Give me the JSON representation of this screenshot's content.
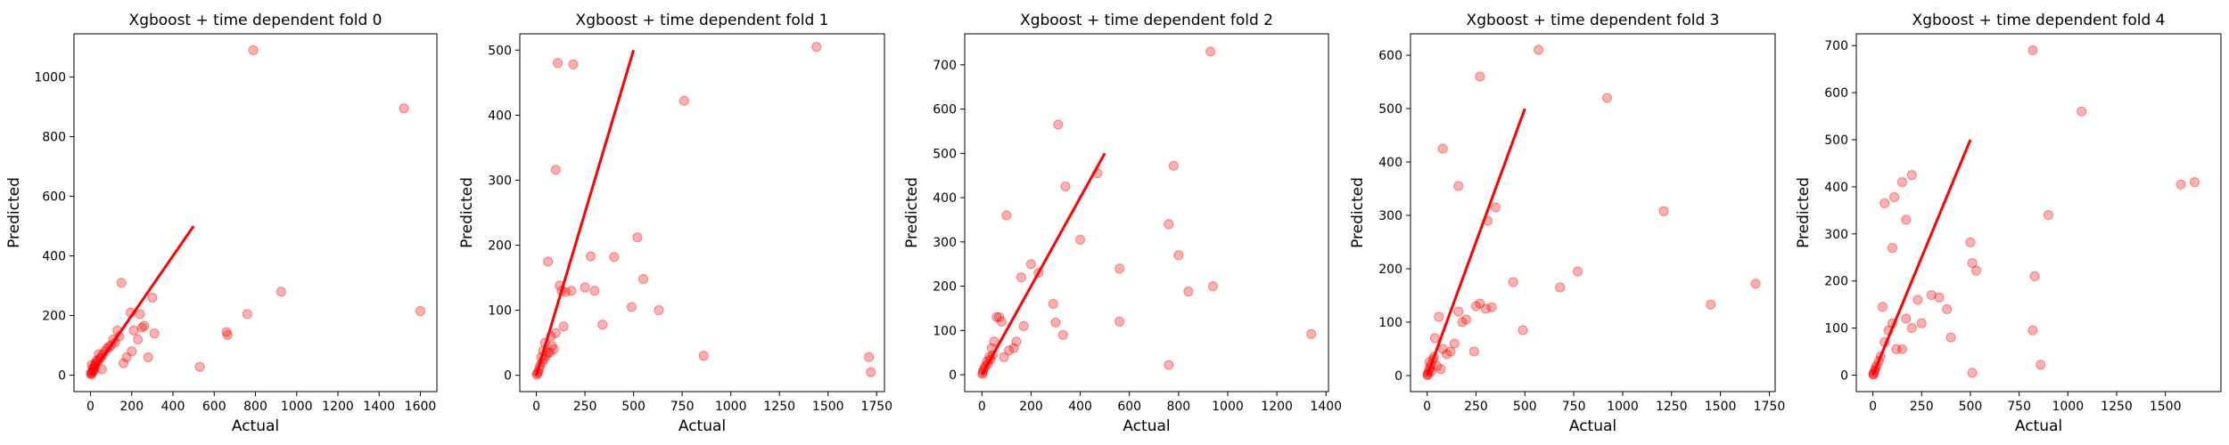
{
  "chart_data": [
    {
      "type": "scatter",
      "title": "Xgboost + time dependent fold 0",
      "xlabel": "Actual",
      "ylabel": "Predicted",
      "xlim": [
        -80,
        1680
      ],
      "ylim": [
        -55,
        1145
      ],
      "xticks": [
        0,
        200,
        400,
        600,
        800,
        1000,
        1200,
        1400,
        1600
      ],
      "yticks": [
        0,
        200,
        400,
        600,
        800,
        1000
      ],
      "reference_line": [
        [
          0,
          0
        ],
        [
          500,
          500
        ]
      ],
      "x": [
        790,
        1520,
        1600,
        925,
        760,
        660,
        665,
        530,
        300,
        150,
        195,
        240,
        260,
        210,
        175,
        310,
        100,
        140,
        80,
        60,
        50,
        30,
        25,
        20,
        15,
        10,
        8,
        5,
        3,
        2,
        12,
        22,
        35,
        45,
        70,
        90,
        120,
        160,
        200,
        230,
        250,
        280,
        130,
        110,
        55,
        40,
        18,
        6
      ],
      "y": [
        1090,
        895,
        215,
        280,
        205,
        145,
        135,
        28,
        260,
        310,
        210,
        205,
        165,
        150,
        60,
        140,
        100,
        130,
        90,
        70,
        60,
        50,
        40,
        30,
        20,
        15,
        10,
        5,
        2,
        8,
        25,
        35,
        45,
        55,
        80,
        95,
        110,
        40,
        80,
        120,
        160,
        60,
        150,
        120,
        20,
        70,
        15,
        35
      ]
    },
    {
      "type": "scatter",
      "title": "Xgboost + time dependent fold 1",
      "xlabel": "Actual",
      "ylabel": "Predicted",
      "xlim": [
        -85,
        1790
      ],
      "ylim": [
        -25,
        525
      ],
      "xticks": [
        0,
        250,
        500,
        750,
        1000,
        1250,
        1500,
        1750
      ],
      "yticks": [
        0,
        100,
        200,
        300,
        400,
        500
      ],
      "reference_line": [
        [
          0,
          0
        ],
        [
          500,
          500
        ]
      ],
      "x": [
        1440,
        1710,
        1720,
        110,
        190,
        760,
        860,
        100,
        520,
        550,
        630,
        490,
        400,
        280,
        250,
        300,
        340,
        60,
        120,
        130,
        150,
        90,
        80,
        70,
        50,
        40,
        30,
        20,
        15,
        10,
        5,
        2,
        25,
        35,
        45,
        60,
        75,
        100,
        140,
        180
      ],
      "y": [
        505,
        28,
        5,
        480,
        478,
        422,
        30,
        316,
        212,
        148,
        100,
        105,
        182,
        183,
        135,
        130,
        78,
        175,
        138,
        130,
        128,
        40,
        45,
        35,
        30,
        25,
        20,
        15,
        10,
        5,
        3,
        1,
        28,
        38,
        50,
        35,
        60,
        65,
        75,
        130
      ]
    },
    {
      "type": "scatter",
      "title": "Xgboost + time dependent fold 2",
      "xlabel": "Actual",
      "ylabel": "Predicted",
      "xlim": [
        -70,
        1410
      ],
      "ylim": [
        -38,
        770
      ],
      "xticks": [
        0,
        200,
        400,
        600,
        800,
        1000,
        1200,
        1400
      ],
      "yticks": [
        0,
        100,
        200,
        300,
        400,
        500,
        600,
        700
      ],
      "reference_line": [
        [
          0,
          0
        ],
        [
          500,
          500
        ]
      ],
      "x": [
        930,
        310,
        780,
        760,
        800,
        560,
        340,
        470,
        400,
        290,
        230,
        940,
        840,
        1340,
        760,
        560,
        300,
        330,
        200,
        170,
        130,
        100,
        80,
        60,
        50,
        40,
        30,
        20,
        15,
        10,
        5,
        3,
        2,
        25,
        35,
        45,
        70,
        90,
        110,
        140,
        160
      ],
      "y": [
        730,
        565,
        472,
        340,
        270,
        240,
        425,
        455,
        305,
        160,
        230,
        200,
        188,
        92,
        22,
        120,
        118,
        90,
        250,
        110,
        60,
        360,
        120,
        130,
        75,
        60,
        40,
        30,
        20,
        15,
        10,
        5,
        2,
        25,
        35,
        45,
        130,
        40,
        55,
        75,
        220
      ]
    },
    {
      "type": "scatter",
      "title": "Xgboost + time dependent fold 3",
      "xlabel": "Actual",
      "ylabel": "Predicted",
      "xlim": [
        -85,
        1780
      ],
      "ylim": [
        -30,
        640
      ],
      "xticks": [
        0,
        250,
        500,
        750,
        1000,
        1250,
        1500,
        1750
      ],
      "yticks": [
        0,
        100,
        200,
        300,
        400,
        500,
        600
      ],
      "reference_line": [
        [
          0,
          0
        ],
        [
          500,
          500
        ]
      ],
      "x": [
        570,
        270,
        920,
        80,
        160,
        1210,
        350,
        310,
        1680,
        770,
        440,
        680,
        1450,
        490,
        330,
        300,
        270,
        250,
        240,
        200,
        180,
        160,
        140,
        120,
        100,
        80,
        60,
        40,
        30,
        20,
        15,
        10,
        5,
        3,
        2,
        12,
        22,
        35,
        50,
        70
      ],
      "y": [
        610,
        560,
        520,
        425,
        355,
        308,
        315,
        290,
        172,
        195,
        175,
        165,
        133,
        85,
        128,
        125,
        135,
        130,
        45,
        105,
        100,
        120,
        60,
        45,
        40,
        50,
        110,
        70,
        30,
        20,
        15,
        10,
        5,
        2,
        1,
        25,
        8,
        35,
        18,
        12
      ]
    },
    {
      "type": "scatter",
      "title": "Xgboost + time dependent fold 4",
      "xlabel": "Actual",
      "ylabel": "Predicted",
      "xlim": [
        -85,
        1785
      ],
      "ylim": [
        -35,
        725
      ],
      "xticks": [
        0,
        250,
        500,
        750,
        1000,
        1250,
        1500
      ],
      "yticks": [
        0,
        100,
        200,
        300,
        400,
        500,
        600,
        700
      ],
      "reference_line": [
        [
          0,
          0
        ],
        [
          500,
          500
        ]
      ],
      "x": [
        820,
        1070,
        1580,
        1650,
        200,
        150,
        60,
        110,
        100,
        170,
        900,
        500,
        530,
        830,
        510,
        820,
        860,
        510,
        400,
        380,
        340,
        300,
        250,
        230,
        200,
        170,
        150,
        120,
        100,
        80,
        60,
        40,
        30,
        20,
        15,
        10,
        5,
        3,
        2,
        50
      ],
      "y": [
        690,
        560,
        405,
        410,
        425,
        410,
        365,
        378,
        270,
        330,
        340,
        282,
        222,
        210,
        238,
        95,
        22,
        5,
        80,
        140,
        165,
        170,
        110,
        160,
        100,
        120,
        55,
        55,
        110,
        95,
        70,
        40,
        30,
        20,
        15,
        10,
        5,
        2,
        1,
        145
      ]
    }
  ]
}
